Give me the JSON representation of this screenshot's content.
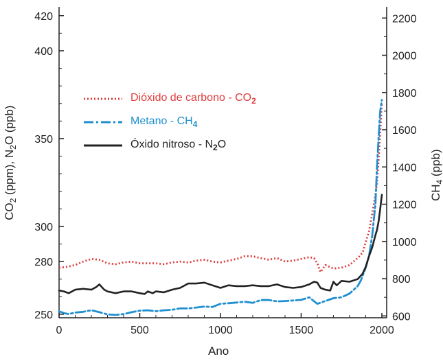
{
  "chart_data": {
    "type": "line",
    "xlabel": "Ano",
    "ylabel_left": {
      "text": "CO",
      "sub1": "2",
      "mid": " (ppm), N",
      "sub2": "2",
      "end": "O (ppb)"
    },
    "ylabel_right": {
      "text": "CH",
      "sub": "4",
      "end": " (ppb)"
    },
    "xlim": [
      0,
      2030
    ],
    "ylim_left": [
      248,
      425
    ],
    "ylim_right": [
      590,
      2260
    ],
    "x_ticks": [
      "0",
      "500",
      "1000",
      "1500",
      "2000"
    ],
    "y_left_ticks": [
      "250",
      "280",
      "300",
      "350",
      "400",
      "420"
    ],
    "y_right_ticks": [
      "600",
      "800",
      "1000",
      "1200",
      "1400",
      "1600",
      "1800",
      "2000",
      "2200"
    ],
    "legend_position": "upper-left",
    "series": [
      {
        "name": "Dióxido de carbono - CO",
        "name_sub": "2",
        "axis": "left",
        "color": "#e03c3c",
        "style": "dotted",
        "x": [
          0,
          50,
          100,
          150,
          200,
          250,
          300,
          350,
          400,
          450,
          500,
          550,
          600,
          650,
          700,
          750,
          800,
          850,
          900,
          950,
          1000,
          1050,
          1100,
          1150,
          1200,
          1250,
          1300,
          1350,
          1400,
          1450,
          1500,
          1550,
          1580,
          1600,
          1620,
          1650,
          1700,
          1750,
          1800,
          1850,
          1880,
          1900,
          1920,
          1940,
          1960,
          1970,
          1980,
          1990,
          2000
        ],
        "y": [
          276.5,
          277,
          278,
          280,
          281.5,
          281,
          279,
          278.5,
          279.5,
          280,
          279,
          279,
          279,
          278.5,
          279.5,
          280,
          279.5,
          280.5,
          281,
          280,
          279.5,
          280.5,
          281.5,
          283,
          283,
          282,
          281,
          282,
          280,
          280.5,
          281.5,
          282.5,
          282,
          279,
          274,
          278,
          276,
          276.5,
          278,
          282,
          285,
          291,
          297,
          307,
          318,
          325,
          338,
          354,
          370
        ]
      },
      {
        "name": "Metano - CH",
        "name_sub": "4",
        "axis": "right",
        "color": "#1f8fd0",
        "style": "dash-dot",
        "x": [
          0,
          30,
          60,
          100,
          150,
          200,
          250,
          300,
          350,
          400,
          450,
          500,
          550,
          600,
          650,
          700,
          750,
          800,
          850,
          900,
          950,
          1000,
          1050,
          1100,
          1150,
          1200,
          1250,
          1300,
          1350,
          1400,
          1450,
          1500,
          1550,
          1600,
          1650,
          1700,
          1750,
          1800,
          1850,
          1870,
          1900,
          1920,
          1940,
          1960,
          1970,
          1980,
          1990,
          2000
        ],
        "y": [
          625,
          615,
          610,
          618,
          622,
          630,
          620,
          608,
          605,
          610,
          620,
          628,
          630,
          625,
          630,
          633,
          640,
          640,
          645,
          650,
          648,
          665,
          668,
          672,
          676,
          670,
          685,
          685,
          678,
          680,
          683,
          686,
          700,
          665,
          680,
          695,
          700,
          720,
          760,
          790,
          860,
          920,
          1030,
          1200,
          1400,
          1560,
          1700,
          1760
        ]
      },
      {
        "name": "Óxido nitroso - N",
        "name_sub": "2",
        "name_end": "O",
        "axis": "left",
        "color": "#222222",
        "style": "solid",
        "x": [
          0,
          30,
          60,
          100,
          150,
          200,
          230,
          250,
          280,
          300,
          350,
          400,
          450,
          500,
          530,
          550,
          580,
          600,
          650,
          700,
          750,
          800,
          850,
          900,
          950,
          1000,
          1050,
          1100,
          1150,
          1200,
          1250,
          1300,
          1350,
          1400,
          1450,
          1500,
          1550,
          1580,
          1600,
          1620,
          1650,
          1680,
          1700,
          1720,
          1750,
          1800,
          1850,
          1880,
          1900,
          1920,
          1940,
          1960,
          1970,
          1980,
          1990,
          2000
        ],
        "y": [
          263.5,
          263,
          262,
          264,
          264.5,
          264,
          265.5,
          267,
          264,
          263,
          262,
          263,
          263,
          262,
          261.5,
          263,
          262,
          263,
          262.5,
          264,
          265,
          267.5,
          267.5,
          268,
          266.5,
          265,
          266.5,
          266,
          266,
          266.5,
          266,
          266,
          267,
          265.5,
          265,
          265.5,
          267,
          268.5,
          268,
          265,
          264,
          263.5,
          268.5,
          266.5,
          269,
          268.5,
          270,
          273,
          277,
          283,
          288,
          295,
          298,
          303,
          310,
          318
        ]
      }
    ]
  }
}
